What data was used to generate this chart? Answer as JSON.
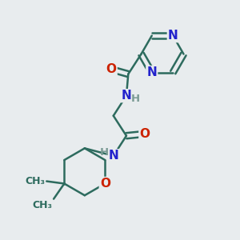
{
  "bg_color": "#e8ecee",
  "bond_color": "#2d6b5e",
  "bond_width": 1.8,
  "atom_colors": {
    "N": "#2222cc",
    "O": "#cc2200",
    "C": "#2d6b5e",
    "H": "#7a9a94"
  },
  "font_size_atom": 11,
  "font_size_H": 9.5,
  "font_size_me": 9
}
